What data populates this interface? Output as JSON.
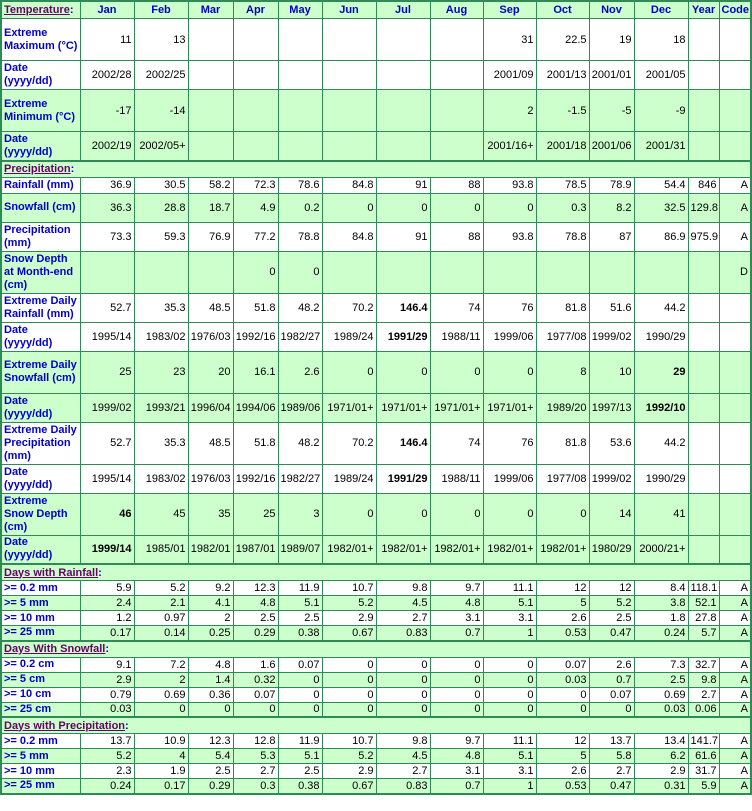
{
  "colors": {
    "border": "#2e8b57",
    "shade": "#ccffcc",
    "label": "#0000cc",
    "section": "#660066"
  },
  "header": {
    "first": "Temperature",
    "colon": ":",
    "columns": [
      "Jan",
      "Feb",
      "Mar",
      "Apr",
      "May",
      "Jun",
      "Jul",
      "Aug",
      "Sep",
      "Oct",
      "Nov",
      "Dec",
      "Year",
      "Code"
    ]
  },
  "sections": [
    {
      "title": "",
      "rows": [
        {
          "label": "Extreme Maximum (°C)",
          "shade": "w",
          "h": 42,
          "cells": [
            "11",
            "13",
            "",
            "",
            "",
            "",
            "",
            "",
            "31",
            "22.5",
            "19",
            "18",
            "",
            ""
          ],
          "bold": []
        },
        {
          "label": "Date (yyyy/dd)",
          "shade": "w",
          "h": 29,
          "cells": [
            "2002/28",
            "2002/25",
            "",
            "",
            "",
            "",
            "",
            "",
            "2001/09",
            "2001/13",
            "2001/01",
            "2001/05",
            "",
            ""
          ],
          "bold": []
        },
        {
          "label": "Extreme Minimum (°C)",
          "shade": "g",
          "h": 42,
          "cells": [
            "-17",
            "-14",
            "",
            "",
            "",
            "",
            "",
            "",
            "2",
            "-1.5",
            "-5",
            "-9",
            "",
            ""
          ],
          "bold": []
        },
        {
          "label": "Date (yyyy/dd)",
          "shade": "g",
          "h": 29,
          "cells": [
            "2002/19",
            "2002/05+",
            "",
            "",
            "",
            "",
            "",
            "",
            "2001/16+",
            "2001/18",
            "2001/06",
            "2001/31",
            "",
            ""
          ],
          "bold": []
        }
      ]
    },
    {
      "title": "Precipitation",
      "colon": ":",
      "rows": [
        {
          "label": "Rainfall (mm)",
          "shade": "w",
          "h": 16,
          "cells": [
            "36.9",
            "30.5",
            "58.2",
            "72.3",
            "78.6",
            "84.8",
            "91",
            "88",
            "93.8",
            "78.5",
            "78.9",
            "54.4",
            "846",
            "A"
          ],
          "bold": []
        },
        {
          "label": "Snowfall (cm)",
          "shade": "g",
          "h": 29,
          "cells": [
            "36.3",
            "28.8",
            "18.7",
            "4.9",
            "0.2",
            "0",
            "0",
            "0",
            "0",
            "0.3",
            "8.2",
            "32.5",
            "129.8",
            "A"
          ],
          "bold": []
        },
        {
          "label": "Precipitation (mm)",
          "shade": "w",
          "h": 29,
          "cells": [
            "73.3",
            "59.3",
            "76.9",
            "77.2",
            "78.8",
            "84.8",
            "91",
            "88",
            "93.8",
            "78.8",
            "87",
            "86.9",
            "975.9",
            "A"
          ],
          "bold": []
        },
        {
          "label": "Snow Depth at Month-end (cm)",
          "shade": "g",
          "h": 42,
          "cells": [
            "",
            "",
            "",
            "0",
            "0",
            "",
            "",
            "",
            "",
            "",
            "",
            "",
            "",
            "D"
          ],
          "bold": []
        },
        {
          "label": "Extreme Daily Rainfall (mm)",
          "shade": "w",
          "h": 29,
          "cells": [
            "52.7",
            "35.3",
            "48.5",
            "51.8",
            "48.2",
            "70.2",
            "146.4",
            "74",
            "76",
            "81.8",
            "51.6",
            "44.2",
            "",
            ""
          ],
          "bold": [
            6
          ]
        },
        {
          "label": "Date (yyyy/dd)",
          "shade": "w",
          "h": 29,
          "cells": [
            "1995/14",
            "1983/02",
            "1976/03",
            "1992/16",
            "1982/27",
            "1989/24",
            "1991/29",
            "1988/11",
            "1999/06",
            "1977/08",
            "1999/02",
            "1990/29",
            "",
            ""
          ],
          "bold": [
            6
          ]
        },
        {
          "label": "Extreme Daily Snowfall (cm)",
          "shade": "g",
          "h": 42,
          "cells": [
            "25",
            "23",
            "20",
            "16.1",
            "2.6",
            "0",
            "0",
            "0",
            "0",
            "8",
            "10",
            "29",
            "",
            ""
          ],
          "bold": [
            11
          ]
        },
        {
          "label": "Date (yyyy/dd)",
          "shade": "g",
          "h": 29,
          "cells": [
            "1999/02",
            "1993/21",
            "1996/04",
            "1994/06",
            "1989/06",
            "1971/01+",
            "1971/01+",
            "1971/01+",
            "1971/01+",
            "1989/20",
            "1997/13",
            "1992/10",
            "",
            ""
          ],
          "bold": [
            11
          ]
        },
        {
          "label": "Extreme Daily Precipitation (mm)",
          "shade": "w",
          "h": 42,
          "cells": [
            "52.7",
            "35.3",
            "48.5",
            "51.8",
            "48.2",
            "70.2",
            "146.4",
            "74",
            "76",
            "81.8",
            "53.6",
            "44.2",
            "",
            ""
          ],
          "bold": [
            6
          ]
        },
        {
          "label": "Date (yyyy/dd)",
          "shade": "w",
          "h": 29,
          "cells": [
            "1995/14",
            "1983/02",
            "1976/03",
            "1992/16",
            "1982/27",
            "1989/24",
            "1991/29",
            "1988/11",
            "1999/06",
            "1977/08",
            "1999/02",
            "1990/29",
            "",
            ""
          ],
          "bold": [
            6
          ]
        },
        {
          "label": "Extreme Snow Depth (cm)",
          "shade": "g",
          "h": 42,
          "cells": [
            "46",
            "45",
            "35",
            "25",
            "3",
            "0",
            "0",
            "0",
            "0",
            "0",
            "14",
            "41",
            "",
            ""
          ],
          "bold": [
            0
          ]
        },
        {
          "label": "Date (yyyy/dd)",
          "shade": "g",
          "h": 29,
          "cells": [
            "1999/14",
            "1985/01",
            "1982/01",
            "1987/01",
            "1989/07",
            "1982/01+",
            "1982/01+",
            "1982/01+",
            "1982/01+",
            "1982/01+",
            "1980/29",
            "2000/21+",
            "",
            ""
          ],
          "bold": [
            0
          ]
        }
      ]
    },
    {
      "title": "Days with Rainfall",
      "colon": ":",
      "rows": [
        {
          "label": ">= 0.2 mm",
          "shade": "w",
          "h": 15,
          "cells": [
            "5.9",
            "5.2",
            "9.2",
            "12.3",
            "11.9",
            "10.7",
            "9.8",
            "9.7",
            "11.1",
            "12",
            "12",
            "8.4",
            "118.1",
            "A"
          ],
          "bold": []
        },
        {
          "label": ">= 5 mm",
          "shade": "g",
          "h": 15,
          "cells": [
            "2.4",
            "2.1",
            "4.1",
            "4.8",
            "5.1",
            "5.2",
            "4.5",
            "4.8",
            "5.1",
            "5",
            "5.2",
            "3.8",
            "52.1",
            "A"
          ],
          "bold": []
        },
        {
          "label": ">= 10 mm",
          "shade": "w",
          "h": 15,
          "cells": [
            "1.2",
            "0.97",
            "2",
            "2.5",
            "2.5",
            "2.9",
            "2.7",
            "3.1",
            "3.1",
            "2.6",
            "2.5",
            "1.8",
            "27.8",
            "A"
          ],
          "bold": []
        },
        {
          "label": ">= 25 mm",
          "shade": "g",
          "h": 15,
          "cells": [
            "0.17",
            "0.14",
            "0.25",
            "0.29",
            "0.38",
            "0.67",
            "0.83",
            "0.7",
            "1",
            "0.53",
            "0.47",
            "0.24",
            "5.7",
            "A"
          ],
          "bold": []
        }
      ]
    },
    {
      "title": "Days With Snowfall",
      "colon": ":",
      "rows": [
        {
          "label": ">= 0.2 cm",
          "shade": "w",
          "h": 15,
          "cells": [
            "9.1",
            "7.2",
            "4.8",
            "1.6",
            "0.07",
            "0",
            "0",
            "0",
            "0",
            "0.07",
            "2.6",
            "7.3",
            "32.7",
            "A"
          ],
          "bold": []
        },
        {
          "label": ">= 5 cm",
          "shade": "g",
          "h": 15,
          "cells": [
            "2.9",
            "2",
            "1.4",
            "0.32",
            "0",
            "0",
            "0",
            "0",
            "0",
            "0.03",
            "0.7",
            "2.5",
            "9.8",
            "A"
          ],
          "bold": []
        },
        {
          "label": ">= 10 cm",
          "shade": "w",
          "h": 15,
          "cells": [
            "0.79",
            "0.69",
            "0.36",
            "0.07",
            "0",
            "0",
            "0",
            "0",
            "0",
            "0",
            "0.07",
            "0.69",
            "2.7",
            "A"
          ],
          "bold": []
        },
        {
          "label": ">= 25 cm",
          "shade": "g",
          "h": 15,
          "cells": [
            "0.03",
            "0",
            "0",
            "0",
            "0",
            "0",
            "0",
            "0",
            "0",
            "0",
            "0",
            "0.03",
            "0.06",
            "A"
          ],
          "bold": []
        }
      ]
    },
    {
      "title": "Days with Precipitation",
      "colon": ":",
      "rows": [
        {
          "label": ">= 0.2 mm",
          "shade": "w",
          "h": 15,
          "cells": [
            "13.7",
            "10.9",
            "12.3",
            "12.8",
            "11.9",
            "10.7",
            "9.8",
            "9.7",
            "11.1",
            "12",
            "13.7",
            "13.4",
            "141.7",
            "A"
          ],
          "bold": []
        },
        {
          "label": ">= 5 mm",
          "shade": "g",
          "h": 15,
          "cells": [
            "5.2",
            "4",
            "5.4",
            "5.3",
            "5.1",
            "5.2",
            "4.5",
            "4.8",
            "5.1",
            "5",
            "5.8",
            "6.2",
            "61.6",
            "A"
          ],
          "bold": []
        },
        {
          "label": ">= 10 mm",
          "shade": "w",
          "h": 15,
          "cells": [
            "2.3",
            "1.9",
            "2.5",
            "2.7",
            "2.5",
            "2.9",
            "2.7",
            "3.1",
            "3.1",
            "2.6",
            "2.7",
            "2.9",
            "31.7",
            "A"
          ],
          "bold": []
        },
        {
          "label": ">= 25 mm",
          "shade": "g",
          "h": 15,
          "cells": [
            "0.24",
            "0.17",
            "0.29",
            "0.3",
            "0.38",
            "0.67",
            "0.83",
            "0.7",
            "1",
            "0.53",
            "0.47",
            "0.31",
            "5.9",
            "A"
          ],
          "bold": []
        }
      ]
    }
  ]
}
